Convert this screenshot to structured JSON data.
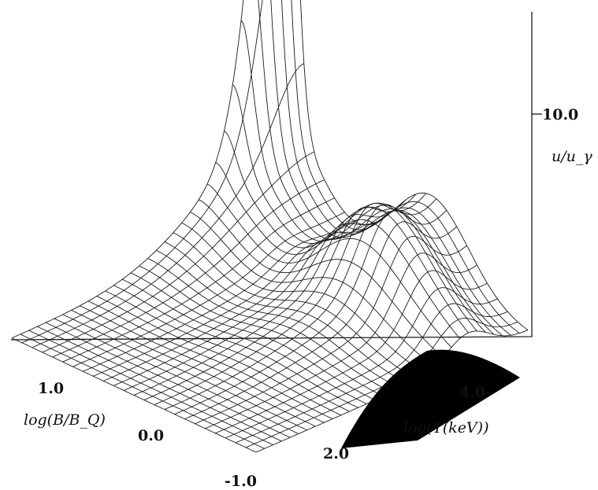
{
  "chart_data": {
    "type": "surface",
    "title": "",
    "axes": {
      "x": {
        "label": "log(B/B_Q)",
        "ticks": [
          "1.0",
          "0.0",
          "-1.0"
        ]
      },
      "y": {
        "label": "log(T(keV))",
        "ticks": [
          "2.0",
          "4.0"
        ]
      },
      "z": {
        "label": "u/u_γ",
        "ticks": [
          "10.0"
        ]
      }
    },
    "x_range": [
      -1.0,
      1.5
    ],
    "y_range": [
      1.5,
      5.0
    ],
    "z_range": [
      0,
      15
    ],
    "grid": true,
    "mesh_resolution": [
      25,
      33
    ],
    "surface_features": [
      {
        "description": "sharp peak",
        "log_B": 1.5,
        "log_T": 5.0,
        "u_over_u_gamma": 15.0
      },
      {
        "description": "plateau",
        "log_B": 0.0,
        "log_T": 5.0,
        "u_over_u_gamma": 3.0
      },
      {
        "description": "ridge minimum",
        "log_B": -1.0,
        "log_T": 2.0,
        "u_over_u_gamma": 0.0
      }
    ],
    "colors": {
      "mesh": "#1a1a1a",
      "shaded_side": "#000000",
      "background": "#ffffff"
    }
  }
}
